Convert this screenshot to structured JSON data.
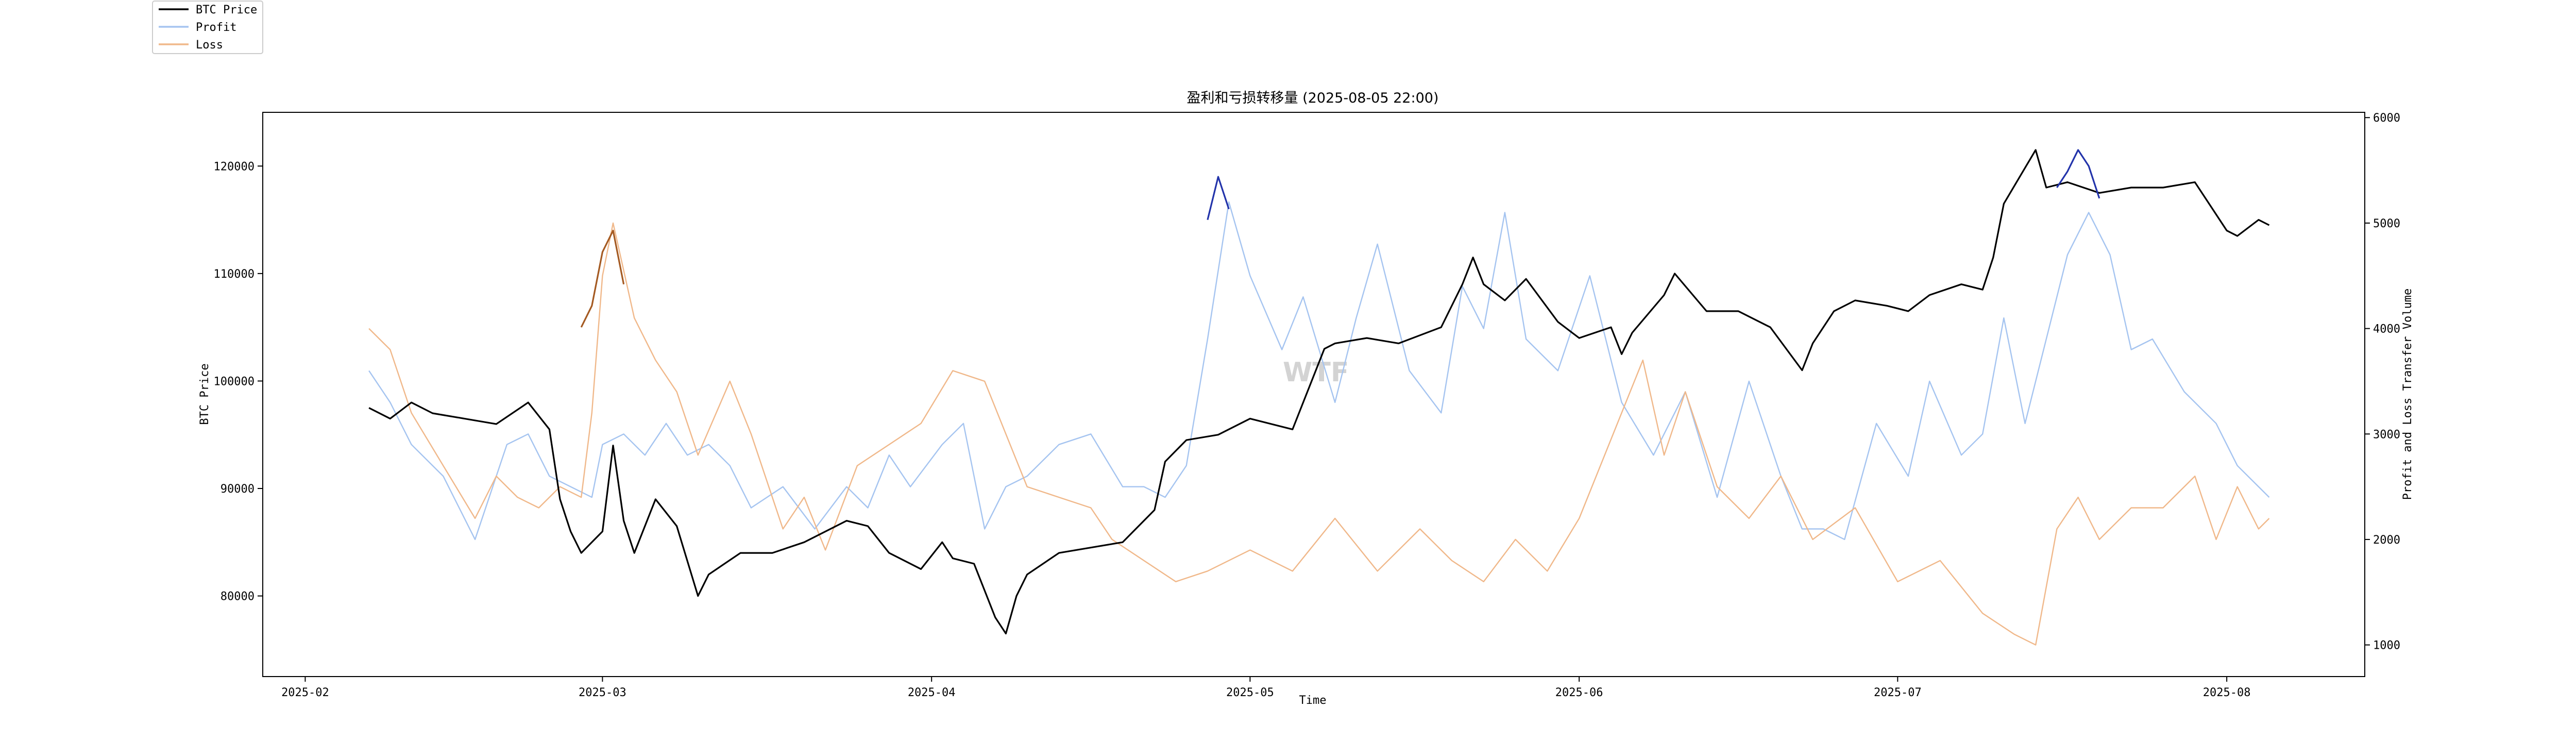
{
  "chart_data": {
    "type": "line",
    "title": "盈利和亏损转移量 (2025-08-05 22:00)",
    "xlabel": "Time",
    "ylabel_left": "BTC Price",
    "ylabel_right": "Profit and Loss Transfer Volume",
    "watermark": "WTF",
    "xlim": [
      "2025-01-28",
      "2025-08-14"
    ],
    "ylim_left": [
      72500,
      125000
    ],
    "ylim_right": [
      700,
      6050
    ],
    "x_ticks": [
      "2025-02",
      "2025-03",
      "2025-04",
      "2025-05",
      "2025-06",
      "2025-07",
      "2025-08"
    ],
    "y_ticks_left": [
      80000,
      90000,
      100000,
      110000,
      120000
    ],
    "y_ticks_right": [
      1000,
      2000,
      3000,
      4000,
      5000,
      6000
    ],
    "legend_position": "upper-left",
    "grid": false,
    "series": [
      {
        "name": "BTC Price",
        "axis": "left",
        "color": "#000000",
        "x": [
          "2025-02-07",
          "2025-02-09",
          "2025-02-11",
          "2025-02-13",
          "2025-02-16",
          "2025-02-19",
          "2025-02-22",
          "2025-02-24",
          "2025-02-25",
          "2025-02-26",
          "2025-02-27",
          "2025-02-28",
          "2025-03-01",
          "2025-03-02",
          "2025-03-03",
          "2025-03-04",
          "2025-03-06",
          "2025-03-08",
          "2025-03-10",
          "2025-03-11",
          "2025-03-14",
          "2025-03-17",
          "2025-03-20",
          "2025-03-24",
          "2025-03-26",
          "2025-03-28",
          "2025-03-31",
          "2025-04-02",
          "2025-04-03",
          "2025-04-05",
          "2025-04-07",
          "2025-04-08",
          "2025-04-09",
          "2025-04-10",
          "2025-04-13",
          "2025-04-16",
          "2025-04-19",
          "2025-04-22",
          "2025-04-23",
          "2025-04-25",
          "2025-04-28",
          "2025-05-01",
          "2025-05-05",
          "2025-05-08",
          "2025-05-09",
          "2025-05-12",
          "2025-05-15",
          "2025-05-19",
          "2025-05-21",
          "2025-05-22",
          "2025-05-23",
          "2025-05-25",
          "2025-05-27",
          "2025-05-30",
          "2025-06-01",
          "2025-06-04",
          "2025-06-05",
          "2025-06-06",
          "2025-06-09",
          "2025-06-10",
          "2025-06-13",
          "2025-06-16",
          "2025-06-19",
          "2025-06-22",
          "2025-06-23",
          "2025-06-25",
          "2025-06-27",
          "2025-06-30",
          "2025-07-02",
          "2025-07-04",
          "2025-07-07",
          "2025-07-09",
          "2025-07-10",
          "2025-07-11",
          "2025-07-14",
          "2025-07-15",
          "2025-07-17",
          "2025-07-20",
          "2025-07-23",
          "2025-07-26",
          "2025-07-29",
          "2025-08-01",
          "2025-08-02",
          "2025-08-04",
          "2025-08-05"
        ],
        "values": [
          97500,
          96500,
          98000,
          97000,
          96500,
          96000,
          98000,
          95500,
          89000,
          86000,
          84000,
          85000,
          86000,
          94000,
          87000,
          84000,
          89000,
          86500,
          80000,
          82000,
          84000,
          84000,
          85000,
          87000,
          86500,
          84000,
          82500,
          85000,
          83500,
          83000,
          78000,
          76500,
          80000,
          82000,
          84000,
          84500,
          85000,
          88000,
          92500,
          94500,
          95000,
          96500,
          95500,
          103000,
          103500,
          104000,
          103500,
          105000,
          109000,
          111500,
          109000,
          107500,
          109500,
          105500,
          104000,
          105000,
          102500,
          104500,
          108000,
          110000,
          106500,
          106500,
          105000,
          101000,
          103500,
          106500,
          107500,
          107000,
          106500,
          108000,
          109000,
          108500,
          111500,
          116500,
          121500,
          118000,
          118500,
          117500,
          118000,
          118000,
          118500,
          114000,
          113500,
          115000,
          114500
        ]
      },
      {
        "name": "Profit",
        "axis": "right",
        "color": "#a5c4f0",
        "x": [
          "2025-02-07",
          "2025-02-09",
          "2025-02-11",
          "2025-02-14",
          "2025-02-17",
          "2025-02-20",
          "2025-02-22",
          "2025-02-24",
          "2025-02-26",
          "2025-02-28",
          "2025-03-01",
          "2025-03-03",
          "2025-03-05",
          "2025-03-07",
          "2025-03-09",
          "2025-03-11",
          "2025-03-13",
          "2025-03-15",
          "2025-03-18",
          "2025-03-21",
          "2025-03-24",
          "2025-03-26",
          "2025-03-28",
          "2025-03-30",
          "2025-04-02",
          "2025-04-04",
          "2025-04-06",
          "2025-04-08",
          "2025-04-10",
          "2025-04-13",
          "2025-04-16",
          "2025-04-19",
          "2025-04-21",
          "2025-04-23",
          "2025-04-25",
          "2025-04-27",
          "2025-04-29",
          "2025-05-01",
          "2025-05-04",
          "2025-05-06",
          "2025-05-09",
          "2025-05-11",
          "2025-05-13",
          "2025-05-16",
          "2025-05-19",
          "2025-05-21",
          "2025-05-23",
          "2025-05-25",
          "2025-05-27",
          "2025-05-30",
          "2025-06-02",
          "2025-06-05",
          "2025-06-08",
          "2025-06-11",
          "2025-06-14",
          "2025-06-17",
          "2025-06-20",
          "2025-06-22",
          "2025-06-24",
          "2025-06-26",
          "2025-06-29",
          "2025-07-02",
          "2025-07-04",
          "2025-07-07",
          "2025-07-09",
          "2025-07-11",
          "2025-07-13",
          "2025-07-15",
          "2025-07-17",
          "2025-07-19",
          "2025-07-21",
          "2025-07-23",
          "2025-07-25",
          "2025-07-28",
          "2025-07-31",
          "2025-08-02",
          "2025-08-04",
          "2025-08-05"
        ],
        "values": [
          3600,
          3300,
          2900,
          2600,
          2000,
          2900,
          3000,
          2600,
          2500,
          2400,
          2900,
          3000,
          2800,
          3100,
          2800,
          2900,
          2700,
          2300,
          2500,
          2100,
          2500,
          2300,
          2800,
          2500,
          2900,
          3100,
          2100,
          2500,
          2600,
          2900,
          3000,
          2500,
          2500,
          2400,
          2700,
          3900,
          5200,
          4500,
          3800,
          4300,
          3300,
          4100,
          4800,
          3600,
          3200,
          4400,
          4000,
          5100,
          3900,
          3600,
          4500,
          3300,
          2800,
          3400,
          2400,
          3500,
          2600,
          2100,
          2100,
          2000,
          3100,
          2600,
          3500,
          2800,
          3000,
          4100,
          3100,
          3900,
          4700,
          5100,
          4700,
          3800,
          3900,
          3400,
          3100,
          2700,
          2500,
          2400
        ]
      },
      {
        "name": "Loss",
        "axis": "right",
        "color": "#f0b88a",
        "x": [
          "2025-02-07",
          "2025-02-09",
          "2025-02-11",
          "2025-02-14",
          "2025-02-17",
          "2025-02-19",
          "2025-02-21",
          "2025-02-23",
          "2025-02-25",
          "2025-02-27",
          "2025-02-28",
          "2025-03-01",
          "2025-03-02",
          "2025-03-04",
          "2025-03-06",
          "2025-03-08",
          "2025-03-10",
          "2025-03-13",
          "2025-03-15",
          "2025-03-18",
          "2025-03-20",
          "2025-03-22",
          "2025-03-25",
          "2025-03-28",
          "2025-03-31",
          "2025-04-03",
          "2025-04-06",
          "2025-04-08",
          "2025-04-10",
          "2025-04-13",
          "2025-04-16",
          "2025-04-18",
          "2025-04-21",
          "2025-04-24",
          "2025-04-27",
          "2025-05-01",
          "2025-05-05",
          "2025-05-09",
          "2025-05-13",
          "2025-05-17",
          "2025-05-20",
          "2025-05-23",
          "2025-05-26",
          "2025-05-29",
          "2025-06-01",
          "2025-06-03",
          "2025-06-05",
          "2025-06-07",
          "2025-06-09",
          "2025-06-11",
          "2025-06-14",
          "2025-06-17",
          "2025-06-20",
          "2025-06-23",
          "2025-06-27",
          "2025-07-01",
          "2025-07-05",
          "2025-07-09",
          "2025-07-12",
          "2025-07-14",
          "2025-07-16",
          "2025-07-18",
          "2025-07-20",
          "2025-07-23",
          "2025-07-26",
          "2025-07-29",
          "2025-07-31",
          "2025-08-02",
          "2025-08-04",
          "2025-08-05"
        ],
        "values": [
          4000,
          3800,
          3200,
          2700,
          2200,
          2600,
          2400,
          2300,
          2500,
          2400,
          3200,
          4500,
          5000,
          4100,
          3700,
          3400,
          2800,
          3500,
          3000,
          2100,
          2400,
          1900,
          2700,
          2900,
          3100,
          3600,
          3500,
          3000,
          2500,
          2400,
          2300,
          2000,
          1800,
          1600,
          1700,
          1900,
          1700,
          2200,
          1700,
          2100,
          1800,
          1600,
          2000,
          1700,
          2200,
          2700,
          3200,
          3700,
          2800,
          3400,
          2500,
          2200,
          2600,
          2000,
          2300,
          1600,
          1800,
          1300,
          1100,
          1000,
          2100,
          2400,
          2000,
          2300,
          2300,
          2600,
          2000,
          2500,
          2100,
          2200
        ]
      },
      {
        "name": "",
        "axis": "left",
        "color": "#a45a22",
        "x": [
          "2025-02-27",
          "2025-02-28",
          "2025-03-01",
          "2025-03-02",
          "2025-03-03"
        ],
        "values": [
          105000,
          107000,
          112000,
          114000,
          109000
        ]
      },
      {
        "name": "",
        "axis": "left",
        "color": "#2233aa",
        "x": [
          "2025-04-27",
          "2025-04-28",
          "2025-04-29"
        ],
        "values": [
          115000,
          119000,
          116000
        ]
      },
      {
        "name": "",
        "axis": "left",
        "color": "#2233aa",
        "x": [
          "2025-07-16",
          "2025-07-17",
          "2025-07-18",
          "2025-07-19",
          "2025-07-20"
        ],
        "values": [
          118000,
          119500,
          121500,
          120000,
          117000
        ]
      }
    ]
  }
}
